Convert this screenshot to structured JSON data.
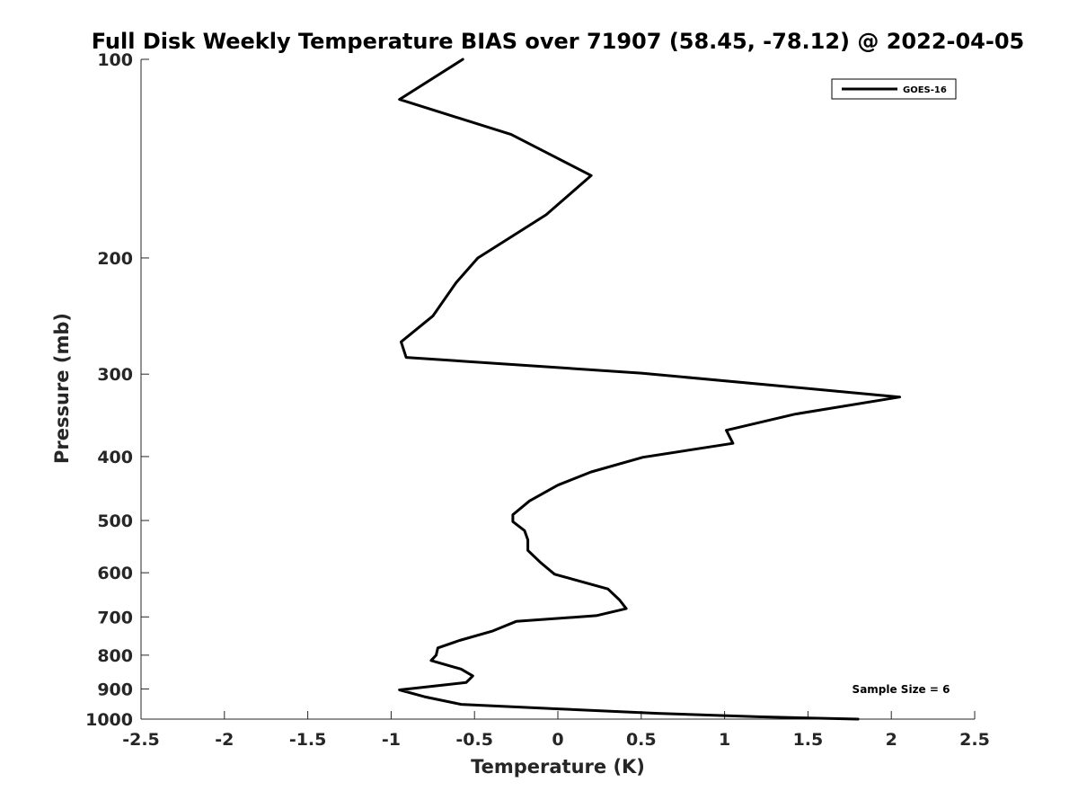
{
  "chart_data": {
    "type": "line",
    "title": "Full Disk Weekly Temperature BIAS over 71907 (58.45, -78.12) @ 2022-04-05",
    "xlabel": "Temperature (K)",
    "ylabel": "Pressure (mb)",
    "xlim": [
      -2.5,
      2.5
    ],
    "ylim": [
      100,
      1000
    ],
    "y_scale": "log",
    "y_reversed": true,
    "x_ticks": [
      -2.5,
      -2,
      -1.5,
      -1,
      -0.5,
      0,
      0.5,
      1,
      1.5,
      2,
      2.5
    ],
    "x_tick_labels": [
      "-2.5",
      "-2",
      "-1.5",
      "-1",
      "-0.5",
      "0",
      "0.5",
      "1",
      "1.5",
      "2",
      "2.5"
    ],
    "y_ticks": [
      100,
      200,
      300,
      400,
      500,
      600,
      700,
      800,
      900,
      1000
    ],
    "y_tick_labels": [
      "100",
      "200",
      "300",
      "400",
      "500",
      "600",
      "700",
      "800",
      "900",
      "1000"
    ],
    "grid": false,
    "legend_position": "top-right",
    "series": [
      {
        "name": "GOES-16",
        "color": "#000000",
        "x": [
          -0.57,
          -0.95,
          -0.28,
          0.2,
          -0.07,
          -0.48,
          -0.61,
          -0.75,
          -0.94,
          -0.91,
          0.5,
          2.05,
          1.42,
          1.01,
          1.05,
          0.51,
          0.2,
          0.0,
          -0.17,
          -0.27,
          -0.27,
          -0.2,
          -0.18,
          -0.18,
          -0.1,
          -0.02,
          0.3,
          0.37,
          0.41,
          0.23,
          -0.25,
          -0.39,
          -0.59,
          -0.72,
          -0.73,
          -0.76,
          -0.58,
          -0.51,
          -0.55,
          -0.95,
          -0.8,
          -0.58,
          0.0,
          0.6,
          1.2,
          1.8
        ],
        "y": [
          100,
          115,
          130,
          150,
          172,
          200,
          218,
          245,
          268,
          283,
          299,
          325,
          345,
          365,
          382,
          401,
          422,
          442,
          467,
          490,
          502,
          518,
          535,
          555,
          580,
          603,
          635,
          660,
          680,
          697,
          711,
          735,
          760,
          780,
          800,
          815,
          840,
          860,
          880,
          903,
          925,
          950,
          965,
          980,
          992,
          1000
        ]
      }
    ],
    "annotations": {
      "sample_size": "Sample Size = 6"
    }
  }
}
